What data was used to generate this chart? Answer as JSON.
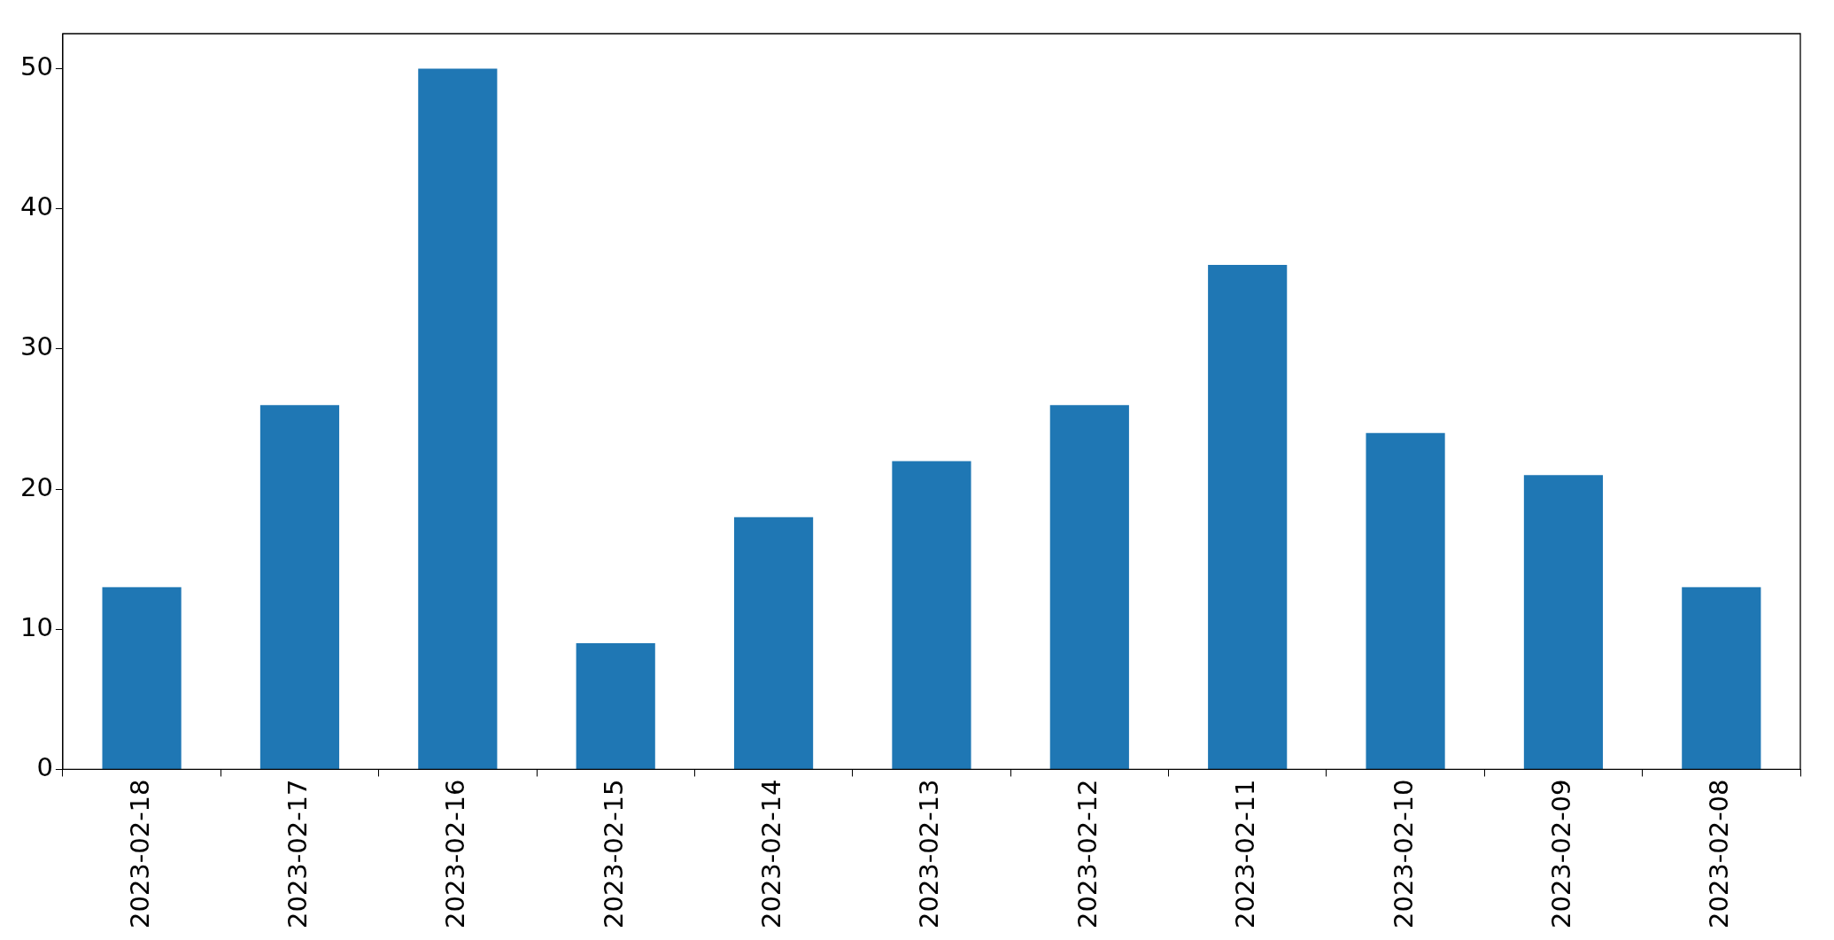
{
  "chart_data": {
    "type": "bar",
    "categories": [
      "2023-02-18",
      "2023-02-17",
      "2023-02-16",
      "2023-02-15",
      "2023-02-14",
      "2023-02-13",
      "2023-02-12",
      "2023-02-11",
      "2023-02-10",
      "2023-02-09",
      "2023-02-08"
    ],
    "values": [
      13,
      26,
      50,
      9,
      18,
      22,
      26,
      36,
      24,
      21,
      13
    ],
    "color": "#1f77b4",
    "ylim": [
      0,
      52.5
    ],
    "yticks": [
      0,
      10,
      20,
      30,
      40,
      50
    ]
  }
}
